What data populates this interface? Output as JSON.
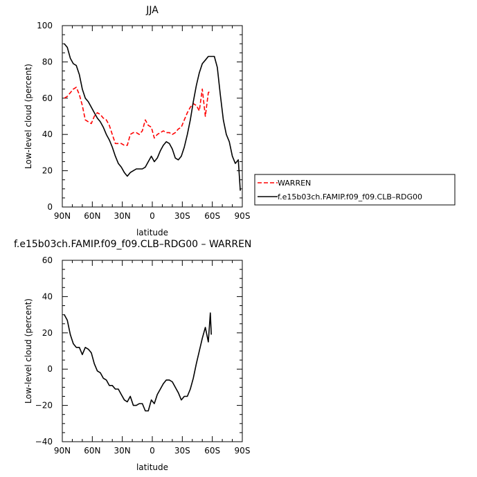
{
  "chart_data": [
    {
      "type": "line",
      "title": "JJA",
      "xlabel": "latitude",
      "ylabel": "Low-level cloud (percent)",
      "xlim": [
        -90,
        90
      ],
      "ylim": [
        0,
        100
      ],
      "xticks": [
        -90,
        -60,
        -30,
        0,
        30,
        60,
        90
      ],
      "xticklabels": [
        "90N",
        "60N",
        "30N",
        "0",
        "30S",
        "60S",
        "90S"
      ],
      "yticks": [
        0,
        20,
        40,
        60,
        80,
        100
      ],
      "yticklabels": [
        "0",
        "20",
        "40",
        "60",
        "80",
        "100"
      ],
      "legend_position": "right",
      "series": [
        {
          "name": "WARREN",
          "color": "#ff0000",
          "dash": "dashed",
          "x": [
            -88,
            -85,
            -82,
            -79,
            -76,
            -73,
            -70,
            -67,
            -64,
            -61,
            -58,
            -55,
            -52,
            -49,
            -46,
            -43,
            -40,
            -37,
            -34,
            -31,
            -28,
            -25,
            -22,
            -19,
            -16,
            -13,
            -10,
            -7,
            -4,
            -1,
            2,
            5,
            8,
            11,
            14,
            17,
            20,
            23,
            26,
            29,
            32,
            35,
            38,
            41,
            44,
            47,
            50,
            53,
            56,
            58
          ],
          "y": [
            60,
            61,
            63,
            65,
            66,
            62,
            56,
            48,
            47,
            46,
            50,
            52,
            51,
            49,
            48,
            45,
            40,
            35,
            35,
            35,
            34,
            34,
            40,
            41,
            41,
            40,
            42,
            48,
            45,
            44,
            38,
            40,
            41,
            42,
            41,
            41,
            40,
            41,
            43,
            44,
            48,
            52,
            55,
            57,
            56,
            53,
            65,
            50,
            63,
            64
          ]
        },
        {
          "name": "f.e15b03ch.FAMIP.f09_f09.CLB–RDG00",
          "color": "#000000",
          "dash": "solid",
          "x": [
            -88,
            -85,
            -82,
            -79,
            -76,
            -73,
            -70,
            -67,
            -64,
            -61,
            -58,
            -55,
            -52,
            -49,
            -46,
            -43,
            -40,
            -37,
            -34,
            -31,
            -28,
            -25,
            -22,
            -19,
            -16,
            -13,
            -10,
            -7,
            -4,
            -1,
            2,
            5,
            8,
            11,
            14,
            17,
            20,
            23,
            26,
            29,
            32,
            35,
            38,
            41,
            44,
            47,
            50,
            53,
            56,
            59,
            62,
            65,
            68,
            71,
            74,
            77,
            80,
            83,
            86,
            88
          ],
          "y": [
            90,
            88,
            82,
            79,
            78,
            73,
            65,
            60,
            58,
            55,
            52,
            49,
            47,
            44,
            40,
            37,
            33,
            28,
            24,
            22,
            19,
            17,
            19,
            20,
            21,
            21,
            21,
            22,
            25,
            28,
            25,
            27,
            31,
            34,
            36,
            35,
            32,
            27,
            26,
            28,
            33,
            40,
            48,
            58,
            67,
            74,
            79,
            81,
            83,
            83,
            83,
            77,
            62,
            48,
            40,
            36,
            28,
            24,
            26,
            9
          ]
        }
      ]
    },
    {
      "type": "line",
      "title": "f.e15b03ch.FAMIP.f09_f09.CLB–RDG00 – WARREN",
      "xlabel": "latitude",
      "ylabel": "Low-level cloud (percent)",
      "xlim": [
        -90,
        90
      ],
      "ylim": [
        -40,
        60
      ],
      "xticks": [
        -90,
        -60,
        -30,
        0,
        30,
        60,
        90
      ],
      "xticklabels": [
        "90N",
        "60N",
        "30N",
        "0",
        "30S",
        "60S",
        "90S"
      ],
      "yticks": [
        -40,
        -20,
        0,
        20,
        40,
        60
      ],
      "yticklabels": [
        "−40",
        "−20",
        "0",
        "20",
        "40",
        "60"
      ],
      "series": [
        {
          "color": "#000000",
          "dash": "solid",
          "x": [
            -88,
            -85,
            -82,
            -79,
            -76,
            -73,
            -70,
            -67,
            -64,
            -61,
            -58,
            -55,
            -52,
            -49,
            -46,
            -43,
            -40,
            -37,
            -34,
            -31,
            -28,
            -25,
            -22,
            -19,
            -16,
            -13,
            -10,
            -7,
            -4,
            -1,
            2,
            5,
            8,
            11,
            14,
            17,
            20,
            23,
            26,
            29,
            32,
            35,
            38,
            41,
            44,
            47,
            50,
            53,
            56
          ],
          "y": [
            30,
            27,
            19,
            14,
            12,
            12,
            8,
            12,
            11,
            9,
            3,
            -1,
            -2,
            -5,
            -6,
            -9,
            -9,
            -11,
            -11,
            -14,
            -17,
            -18,
            -15,
            -20,
            -20,
            -19,
            -19,
            -23,
            -23,
            -17,
            -19,
            -14,
            -11,
            -8,
            -6,
            -6,
            -7,
            -10,
            -13,
            -17,
            -15,
            -15,
            -11,
            -5,
            3,
            10,
            17,
            23,
            15
          ]
        }
      ],
      "extra": {
        "tail_x": [
          56,
          58,
          59
        ],
        "tail_y": [
          15,
          31,
          19
        ]
      }
    }
  ]
}
